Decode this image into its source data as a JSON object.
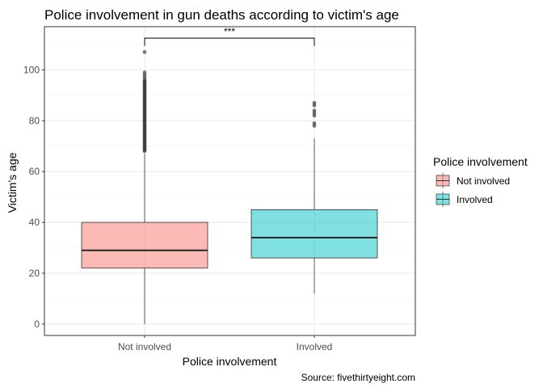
{
  "chart_data": {
    "type": "boxplot",
    "title": "Police involvement in gun deaths according to victim's age",
    "xlabel": "Police involvement",
    "ylabel": "Victim's age",
    "caption": "Source: fivethirtyeight.com",
    "ylim": [
      -4.5,
      117
    ],
    "yticks": [
      0,
      20,
      40,
      60,
      80,
      100
    ],
    "categories": [
      "Not involved",
      "Involved"
    ],
    "legend": {
      "title": "Police involvement",
      "position": "right",
      "items": [
        "Not involved",
        "Involved"
      ]
    },
    "grid": true,
    "significance": {
      "label": "***",
      "y": 112.5,
      "y_end": 109.5
    },
    "boxes": [
      {
        "name": "Not involved",
        "color": "#F8766D",
        "whisker_low": 0,
        "q1": 22,
        "median": 29,
        "q3": 40,
        "whisker_high": 67,
        "outliers": [
          68,
          68.5,
          69,
          69.5,
          70,
          70.5,
          71,
          71.5,
          72,
          72.5,
          73,
          73.5,
          74,
          74.5,
          75,
          75.5,
          76,
          76.5,
          77,
          77.5,
          78,
          78.5,
          79,
          79.5,
          80,
          80.5,
          81,
          81.5,
          82,
          82.5,
          83,
          83.5,
          84,
          84.5,
          85,
          85.5,
          86,
          86.5,
          87,
          87.5,
          88,
          88.5,
          89,
          89.5,
          90,
          90.5,
          91,
          91.5,
          92,
          92.5,
          93,
          93.5,
          94,
          94.5,
          95,
          95.5,
          96,
          97,
          98,
          99,
          107
        ]
      },
      {
        "name": "Involved",
        "color": "#00BFC4",
        "whisker_low": 12,
        "q1": 26,
        "median": 34,
        "q3": 45,
        "whisker_high": 73,
        "outliers": [
          78,
          79,
          82,
          83,
          84,
          86,
          87
        ]
      }
    ]
  }
}
